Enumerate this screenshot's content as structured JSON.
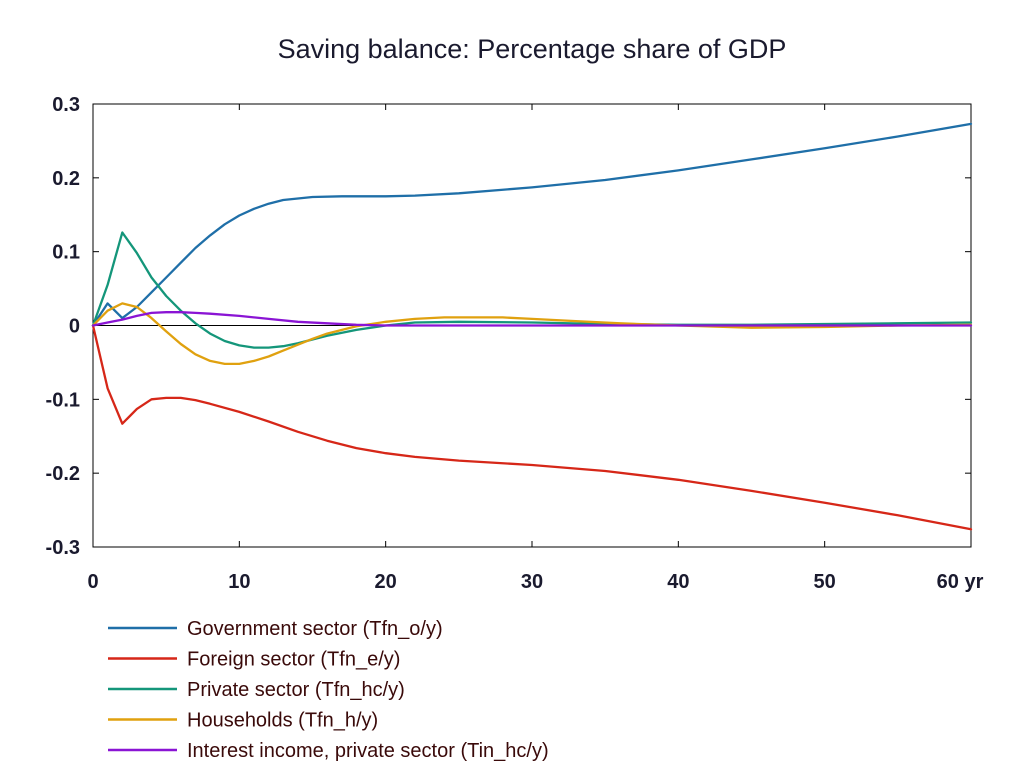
{
  "chart_data": {
    "type": "line",
    "title": "Saving balance: Percentage share of GDP",
    "x_unit": "yr",
    "xlim": [
      0,
      60
    ],
    "ylim": [
      -0.3,
      0.3
    ],
    "x_ticks": [
      0,
      10,
      20,
      30,
      40,
      50,
      60
    ],
    "y_ticks": [
      0.3,
      0.2,
      0.1,
      0,
      -0.1,
      -0.2,
      -0.3
    ],
    "y_tick_labels": [
      "0.3",
      "0.2",
      "0.1",
      "0",
      "-0.1",
      "-0.2",
      "-0.3"
    ],
    "x_tick_labels": [
      "0",
      "10",
      "20",
      "30",
      "40",
      "50",
      "60 yr"
    ],
    "grid": false,
    "zero_line": true,
    "legend_position": "bottom-left",
    "series": [
      {
        "name": "Government sector (Tfn_o/y)",
        "color": "#1f6fa8",
        "x": [
          0,
          1,
          2,
          3,
          4,
          5,
          6,
          7,
          8,
          9,
          10,
          11,
          12,
          13,
          14,
          15,
          17,
          20,
          22,
          25,
          30,
          35,
          40,
          45,
          50,
          55,
          60
        ],
        "y": [
          0,
          0.03,
          0.01,
          0.025,
          0.045,
          0.065,
          0.085,
          0.105,
          0.122,
          0.137,
          0.149,
          0.158,
          0.165,
          0.17,
          0.172,
          0.174,
          0.175,
          0.175,
          0.176,
          0.179,
          0.187,
          0.197,
          0.21,
          0.225,
          0.24,
          0.256,
          0.273
        ]
      },
      {
        "name": "Foreign sector (Tfn_e/y)",
        "color": "#d62718",
        "x": [
          0,
          1,
          2,
          3,
          4,
          5,
          6,
          7,
          8,
          10,
          12,
          14,
          16,
          18,
          20,
          22,
          25,
          30,
          35,
          40,
          45,
          50,
          55,
          60
        ],
        "y": [
          0,
          -0.085,
          -0.133,
          -0.113,
          -0.1,
          -0.098,
          -0.098,
          -0.101,
          -0.106,
          -0.117,
          -0.13,
          -0.144,
          -0.156,
          -0.166,
          -0.173,
          -0.178,
          -0.183,
          -0.189,
          -0.197,
          -0.209,
          -0.224,
          -0.24,
          -0.257,
          -0.276
        ]
      },
      {
        "name": "Private sector (Tfn_hc/y)",
        "color": "#14967a",
        "x": [
          0,
          1,
          2,
          3,
          4,
          5,
          6,
          7,
          8,
          9,
          10,
          11,
          12,
          13,
          14,
          15,
          16,
          18,
          20,
          22,
          25,
          30,
          35,
          40,
          45,
          50,
          55,
          60
        ],
        "y": [
          0,
          0.055,
          0.126,
          0.098,
          0.065,
          0.04,
          0.02,
          0.003,
          -0.011,
          -0.021,
          -0.027,
          -0.03,
          -0.03,
          -0.028,
          -0.024,
          -0.019,
          -0.014,
          -0.006,
          0,
          0.004,
          0.005,
          0.004,
          0.002,
          0.001,
          0.001,
          0.002,
          0.003,
          0.004
        ]
      },
      {
        "name": "Households (Tfn_h/y)",
        "color": "#e0a10f",
        "x": [
          0,
          1,
          2,
          3,
          4,
          5,
          6,
          7,
          8,
          9,
          10,
          11,
          12,
          13,
          14,
          15,
          16,
          18,
          20,
          22,
          24,
          26,
          28,
          30,
          33,
          36,
          40,
          45,
          50,
          55,
          60
        ],
        "y": [
          0,
          0.02,
          0.03,
          0.025,
          0.01,
          -0.008,
          -0.025,
          -0.039,
          -0.048,
          -0.052,
          -0.052,
          -0.048,
          -0.042,
          -0.034,
          -0.026,
          -0.018,
          -0.011,
          -0.001,
          0.005,
          0.009,
          0.011,
          0.011,
          0.011,
          0.009,
          0.006,
          0.003,
          0,
          -0.003,
          -0.002,
          0,
          0.001
        ]
      },
      {
        "name": "Interest income, private sector (Tin_hc/y)",
        "color": "#8a14d4",
        "x": [
          0,
          1,
          2,
          3,
          4,
          5,
          6,
          7,
          8,
          10,
          12,
          14,
          16,
          18,
          20,
          25,
          30,
          40,
          50,
          60
        ],
        "y": [
          0,
          0.004,
          0.008,
          0.013,
          0.017,
          0.018,
          0.018,
          0.017,
          0.016,
          0.013,
          0.009,
          0.005,
          0.003,
          0.001,
          0,
          0,
          0,
          0,
          0,
          0
        ]
      }
    ]
  }
}
